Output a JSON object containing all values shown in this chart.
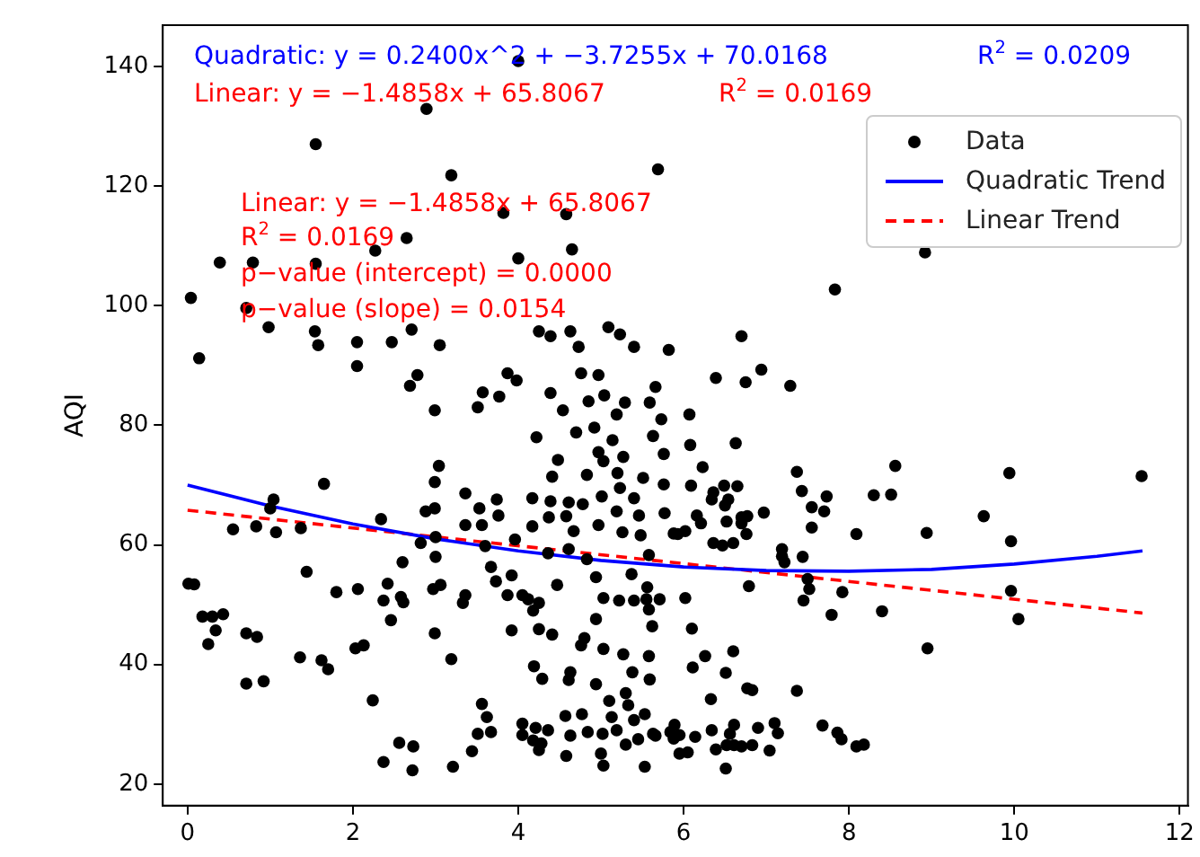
{
  "chart_data": {
    "type": "scatter",
    "ylabel": "AQI",
    "xlim": [
      -0.3,
      12.1
    ],
    "xticks": [
      0,
      2,
      4,
      6,
      8,
      10,
      12
    ],
    "ylim": [
      16.4,
      146.9
    ],
    "yticks": [
      20,
      40,
      60,
      80,
      100,
      120,
      140
    ],
    "grid": false,
    "legend": "top right",
    "annotations": [
      "Quadratic: y = 0.2400x^2 + −3.7255x + 70.0168",
      "R$^{2}$ = 0.0209",
      "Linear: y = −1.4858x + 65.8067",
      "R$^{2}$ = 0.0169",
      "Linear: y = −1.4858x + 65.8067",
      "R$^{2}$ = 0.0169",
      "p−value (intercept) = 0.0000",
      "p−value (slope) = 0.0154"
    ],
    "series": [
      {
        "name": "Data",
        "type": "scatter",
        "marker": "circle",
        "color": "#000000",
        "x": [
          4.0,
          2.89,
          1.55,
          3.19,
          5.69,
          3.82,
          4.58,
          2.65,
          2.27,
          4.65,
          0.39,
          0.79,
          1.55,
          4.0,
          0.04,
          0.71,
          0.98,
          1.54,
          1.58,
          2.05,
          2.47,
          2.71,
          3.05,
          0.14,
          2.05,
          2.78,
          2.69,
          3.87,
          3.98,
          4.25,
          4.39,
          4.63,
          4.73,
          4.76,
          4.97,
          5.09,
          5.23,
          5.4,
          5.82,
          3.57,
          3.77,
          4.39,
          5.04,
          5.66,
          4.85,
          7.83,
          6.7,
          6.39,
          6.75,
          6.94,
          7.29,
          8.92,
          2.99,
          3.51,
          4.54,
          5.19,
          5.29,
          5.59,
          5.73,
          4.22,
          4.7,
          4.92,
          5.14,
          5.63,
          4.48,
          4.97,
          5.03,
          5.27,
          5.76,
          3.04,
          2.99,
          1.65,
          4.41,
          4.83,
          5.2,
          5.51,
          5.76,
          5.4,
          5.23,
          3.36,
          4.17,
          4.39,
          4.61,
          4.78,
          5.01,
          3.74,
          3.53,
          2.99,
          2.88,
          1.04,
          1.0,
          5.19,
          5.46,
          5.77,
          2.34,
          3.36,
          3.56,
          3.76,
          4.17,
          4.37,
          4.58,
          4.67,
          4.97,
          5.26,
          5.48,
          0.55,
          0.83,
          1.07,
          1.37,
          2.82,
          3.0,
          3.96,
          3.6,
          4.36,
          4.61,
          4.83,
          5.58,
          5.88,
          2.6,
          3.0,
          1.44,
          3.67,
          3.73,
          3.92,
          4.94,
          5.37,
          0.01,
          0.08,
          1.8,
          2.06,
          2.42,
          2.97,
          3.06,
          4.47,
          5.56,
          3.87,
          4.05,
          4.12,
          4.25,
          3.36,
          3.33,
          2.37,
          2.58,
          2.61,
          5.03,
          5.22,
          5.4,
          5.55,
          5.71,
          4.18,
          5.58,
          0.18,
          0.3,
          0.43,
          0.34,
          0.25,
          2.46,
          4.94,
          5.62,
          0.71,
          0.84,
          2.99,
          3.92,
          4.25,
          4.41,
          4.8,
          4.76,
          2.03,
          2.13,
          5.03,
          5.27,
          5.58,
          1.36,
          1.62,
          1.7,
          3.19,
          4.19,
          5.38,
          5.59,
          4.63,
          4.61,
          4.29,
          4.94,
          0.71,
          0.92,
          2.24,
          3.56,
          3.62,
          3.67,
          3.51,
          4.05,
          4.05,
          4.21,
          4.18,
          4.28,
          4.36,
          4.57,
          4.63,
          4.77,
          4.84,
          5.1,
          5.13,
          5.02,
          5.19,
          5.3,
          5.33,
          5.4,
          5.53,
          5.3,
          5.45,
          5.63,
          5.84,
          5.66,
          2.56,
          2.73,
          2.72,
          2.37,
          3.44,
          3.21,
          4.58,
          5.0,
          5.03,
          5.53,
          4.25,
          5.88,
          6.07,
          6.08,
          6.63,
          6.23,
          7.37,
          8.56,
          9.94,
          11.54,
          6.09,
          6.36,
          6.49,
          6.65,
          6.54,
          6.5,
          6.34,
          7.43,
          7.73,
          8.3,
          8.51,
          6.16,
          6.21,
          6.7,
          6.77,
          6.7,
          6.76,
          6.97,
          7.55,
          7.7,
          7.55,
          6.52,
          5.93,
          6.02,
          9.63,
          8.94,
          8.09,
          6.36,
          6.47,
          6.6,
          7.19,
          7.19,
          7.22,
          7.44,
          9.96,
          7.5,
          7.52,
          7.45,
          6.79,
          7.92,
          9.96,
          10.05,
          8.4,
          7.79,
          6.02,
          6.1,
          8.95,
          6.26,
          6.6,
          6.11,
          6.51,
          6.77,
          6.83,
          7.37,
          6.33,
          5.89,
          5.95,
          6.14,
          6.34,
          6.61,
          6.56,
          6.9,
          7.1,
          7.14,
          7.68,
          7.86,
          7.91,
          8.09,
          8.18,
          5.95,
          6.05,
          6.39,
          6.52,
          6.61,
          6.7,
          6.83,
          7.04,
          6.51
        ],
        "values": [
          140.9,
          132.9,
          127.0,
          121.8,
          122.8,
          115.5,
          115.3,
          111.3,
          109.2,
          109.4,
          107.2,
          107.2,
          107.0,
          107.9,
          101.3,
          99.6,
          96.4,
          95.7,
          93.4,
          93.9,
          93.9,
          96.0,
          93.4,
          91.2,
          89.9,
          88.4,
          86.6,
          88.7,
          87.5,
          95.7,
          94.9,
          95.7,
          93.1,
          88.7,
          88.4,
          96.4,
          95.2,
          93.1,
          92.6,
          85.5,
          84.8,
          85.4,
          85.0,
          86.4,
          84.0,
          102.7,
          94.9,
          87.9,
          87.2,
          89.3,
          86.6,
          108.9,
          82.5,
          83.0,
          82.5,
          81.8,
          83.8,
          83.8,
          81.0,
          78.0,
          78.8,
          79.6,
          77.5,
          78.2,
          74.2,
          75.5,
          74.0,
          74.7,
          75.2,
          73.2,
          70.5,
          70.2,
          71.4,
          71.7,
          72.0,
          71.2,
          70.1,
          67.8,
          69.5,
          68.6,
          67.8,
          67.3,
          67.1,
          66.8,
          68.1,
          67.6,
          66.1,
          66.1,
          65.6,
          67.6,
          66.1,
          65.6,
          64.9,
          65.3,
          64.3,
          63.3,
          63.3,
          64.9,
          63.1,
          64.6,
          64.8,
          62.3,
          63.3,
          62.1,
          61.6,
          62.6,
          63.1,
          62.1,
          62.8,
          60.3,
          61.3,
          60.9,
          59.8,
          58.6,
          59.3,
          57.6,
          58.3,
          61.9,
          57.1,
          58.0,
          55.5,
          56.3,
          53.9,
          54.9,
          54.6,
          55.1,
          53.5,
          53.4,
          52.1,
          52.6,
          53.5,
          52.6,
          53.3,
          53.3,
          52.9,
          51.6,
          51.6,
          50.9,
          50.3,
          51.6,
          50.3,
          50.7,
          51.3,
          50.4,
          51.1,
          50.7,
          50.7,
          50.9,
          50.9,
          49.0,
          49.2,
          48.0,
          48.0,
          48.4,
          45.7,
          43.4,
          47.4,
          47.6,
          46.4,
          45.2,
          44.6,
          45.2,
          45.7,
          45.9,
          45.0,
          44.4,
          43.2,
          42.7,
          43.2,
          42.6,
          41.7,
          41.4,
          41.2,
          40.7,
          39.2,
          40.9,
          39.7,
          38.7,
          37.5,
          38.7,
          37.4,
          37.6,
          36.7,
          36.8,
          37.2,
          34.0,
          33.4,
          31.2,
          28.7,
          28.4,
          30.1,
          28.2,
          29.4,
          27.3,
          26.8,
          29.0,
          31.4,
          28.1,
          31.7,
          28.7,
          33.9,
          31.2,
          28.4,
          29.0,
          35.2,
          33.2,
          30.7,
          31.7,
          26.6,
          27.5,
          28.4,
          28.7,
          28.1,
          26.9,
          26.3,
          22.3,
          23.7,
          25.5,
          22.9,
          24.7,
          25.1,
          23.1,
          22.9,
          25.7,
          27.6,
          81.8,
          76.7,
          77.0,
          73.0,
          72.2,
          73.2,
          72.0,
          71.5,
          69.9,
          68.8,
          69.9,
          69.8,
          67.6,
          66.6,
          67.6,
          69.0,
          68.1,
          68.3,
          68.4,
          64.9,
          63.6,
          64.6,
          64.8,
          63.6,
          61.8,
          65.4,
          66.3,
          65.6,
          62.9,
          63.9,
          61.8,
          62.3,
          64.8,
          62.0,
          61.8,
          60.3,
          59.9,
          60.3,
          59.3,
          58.1,
          57.1,
          58.0,
          60.6,
          54.3,
          52.6,
          50.7,
          53.1,
          52.1,
          52.3,
          47.6,
          48.9,
          48.3,
          51.1,
          46.0,
          42.7,
          41.4,
          42.2,
          39.5,
          38.6,
          36.0,
          35.7,
          35.6,
          34.2,
          29.9,
          28.2,
          27.9,
          29.0,
          29.9,
          28.4,
          29.4,
          30.2,
          28.5,
          29.8,
          28.6,
          27.5,
          26.3,
          26.6,
          25.1,
          25.3,
          25.8,
          26.5,
          26.5,
          26.3,
          26.5,
          25.6,
          22.6
        ]
      },
      {
        "name": "Quadratic Trend",
        "type": "line",
        "marker": "none",
        "line_style": "solid",
        "color": "#0000ff",
        "x": [
          0,
          1,
          2,
          3,
          4,
          5,
          6,
          7,
          8,
          9,
          10,
          11,
          11.55
        ],
        "values": [
          70.0,
          66.5,
          63.5,
          61.0,
          59.0,
          57.4,
          56.3,
          55.7,
          55.6,
          55.9,
          56.8,
          58.1,
          59.0
        ]
      },
      {
        "name": "Linear Trend",
        "type": "line",
        "marker": "none",
        "line_style": "dashed",
        "color": "#ff0000",
        "x": [
          0,
          11.55
        ],
        "values": [
          65.8,
          48.6
        ]
      }
    ]
  }
}
